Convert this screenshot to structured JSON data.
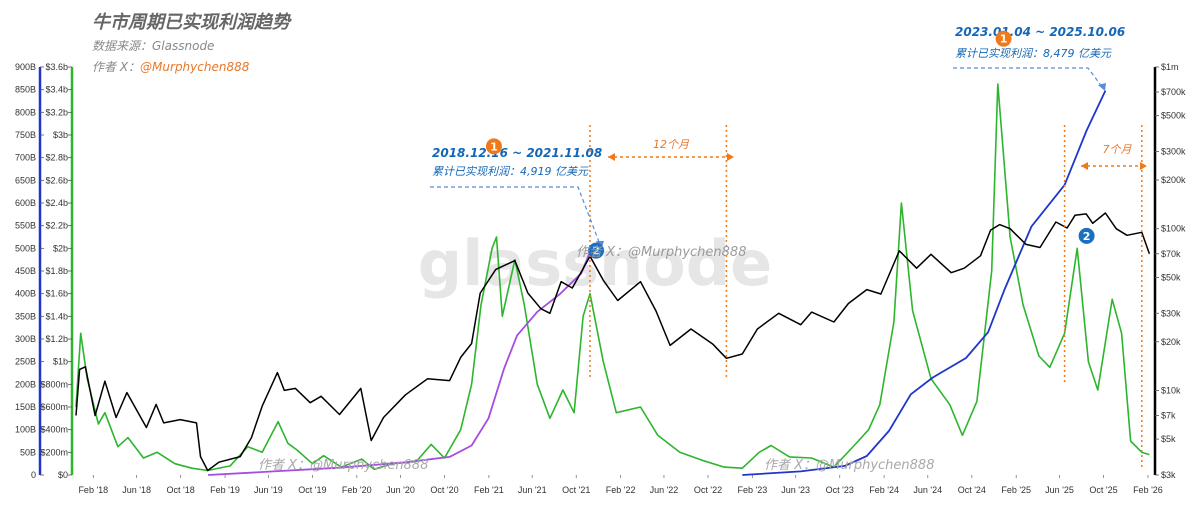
{
  "header": {
    "title": "牛市周期已实现利润趋势",
    "source": "数据来源：Glassnode",
    "author_prefix": "作者 X：",
    "author_handle": "@Murphychen888"
  },
  "watermark": {
    "brand": "glassnode",
    "handle_1": "作者 X：@Murphychen888",
    "handle_2": "作者 X：@Murphychen888",
    "handle_3": "作者 X：@Murphychen888"
  },
  "annotations": {
    "cycle1_range": "2018.12.16 ~ 2021.11.08",
    "cycle1_profit": "累计已实现利润：4,919 亿美元",
    "cycle2_range": "2023.01.04 ~ 2025.10.06",
    "cycle2_profit": "累计已实现利润：8,479 亿美元",
    "span1": "12个月",
    "span2": "7个月",
    "marker_a": "1",
    "marker_b": "2",
    "marker_c": "1",
    "marker_d": "2"
  },
  "colors": {
    "price": "#000000",
    "profit_ma": "#2db52d",
    "cum_cycle1": "#a64ce0",
    "cum_cycle2": "#1f36c9",
    "orange": "#f07a1a",
    "blue_marker": "#1a6fc0",
    "annotation_blue": "#1467b8"
  },
  "chart_data": {
    "type": "line",
    "title": "牛市周期已实现利润趋势",
    "x_ticks": [
      "Feb '18",
      "Jun '18",
      "Oct '18",
      "Feb '19",
      "Jun '19",
      "Oct '19",
      "Feb '20",
      "Jun '20",
      "Oct '20",
      "Feb '21",
      "Jun '21",
      "Oct '21",
      "Feb '22",
      "Jun '22",
      "Oct '22",
      "Feb '23",
      "Jun '23",
      "Oct '23",
      "Feb '24",
      "Jun '24",
      "Oct '24",
      "Feb '25",
      "Jun '25",
      "Oct '25",
      "Feb '26"
    ],
    "x_range": [
      "2017-12-15",
      "2026-02-15"
    ],
    "axis_left_outer": {
      "ticks": [
        "0",
        "50B",
        "100B",
        "150B",
        "200B",
        "250B",
        "300B",
        "350B",
        "400B",
        "450B",
        "500B",
        "550B",
        "600B",
        "650B",
        "700B",
        "750B",
        "800B",
        "850B",
        "900B"
      ],
      "range": [
        0,
        900
      ]
    },
    "axis_left_inner": {
      "ticks": [
        "$0",
        "$200m",
        "$400m",
        "$600m",
        "$800m",
        "$1b",
        "$1.2b",
        "$1.4b",
        "$1.6b",
        "$1.8b",
        "$2b",
        "$2.2b",
        "$2.4b",
        "$2.6b",
        "$2.8b",
        "$3b",
        "$3.2b",
        "$3.4b",
        "$3.6b"
      ],
      "range": [
        0,
        3.6
      ]
    },
    "axis_right": {
      "ticks": [
        "$3k",
        "$5k",
        "$7k",
        "$10k",
        "$20k",
        "$30k",
        "$50k",
        "$70k",
        "$100k",
        "$200k",
        "$300k",
        "$500k",
        "$700k",
        "$1m"
      ],
      "tick_values": [
        3000,
        5000,
        7000,
        10000,
        20000,
        30000,
        50000,
        70000,
        100000,
        200000,
        300000,
        500000,
        700000,
        1000000
      ],
      "scale": "log",
      "range": [
        3000,
        1000000
      ]
    },
    "series": [
      {
        "key": "price",
        "axis": "right",
        "points": [
          [
            "2017-12-15",
            7000
          ],
          [
            "2017-12-25",
            13500
          ],
          [
            "2018-01-10",
            14000
          ],
          [
            "2018-02-06",
            7000
          ],
          [
            "2018-03-05",
            11400
          ],
          [
            "2018-04-05",
            6800
          ],
          [
            "2018-05-05",
            9700
          ],
          [
            "2018-06-28",
            5900
          ],
          [
            "2018-07-25",
            8200
          ],
          [
            "2018-08-15",
            6300
          ],
          [
            "2018-09-30",
            6600
          ],
          [
            "2018-11-14",
            6300
          ],
          [
            "2018-11-25",
            3900
          ],
          [
            "2018-12-15",
            3200
          ],
          [
            "2019-01-15",
            3600
          ],
          [
            "2019-03-15",
            3900
          ],
          [
            "2019-04-15",
            5100
          ],
          [
            "2019-05-15",
            8000
          ],
          [
            "2019-06-26",
            12900
          ],
          [
            "2019-07-15",
            10000
          ],
          [
            "2019-08-15",
            10300
          ],
          [
            "2019-09-25",
            8400
          ],
          [
            "2019-10-25",
            9200
          ],
          [
            "2019-12-15",
            7100
          ],
          [
            "2020-02-12",
            10300
          ],
          [
            "2020-03-12",
            4900
          ],
          [
            "2020-04-15",
            6800
          ],
          [
            "2020-06-15",
            9400
          ],
          [
            "2020-08-15",
            11800
          ],
          [
            "2020-10-15",
            11500
          ],
          [
            "2020-11-15",
            16000
          ],
          [
            "2020-12-15",
            19500
          ],
          [
            "2021-01-08",
            40000
          ],
          [
            "2021-02-20",
            56000
          ],
          [
            "2021-04-14",
            63500
          ],
          [
            "2021-05-20",
            40000
          ],
          [
            "2021-06-25",
            32000
          ],
          [
            "2021-07-20",
            30000
          ],
          [
            "2021-08-20",
            47000
          ],
          [
            "2021-09-20",
            43000
          ],
          [
            "2021-11-08",
            67500
          ],
          [
            "2021-12-15",
            48000
          ],
          [
            "2022-01-24",
            36000
          ],
          [
            "2022-03-28",
            47000
          ],
          [
            "2022-05-10",
            31000
          ],
          [
            "2022-06-18",
            19000
          ],
          [
            "2022-08-15",
            24000
          ],
          [
            "2022-10-15",
            19300
          ],
          [
            "2022-11-21",
            15800
          ],
          [
            "2023-01-04",
            16800
          ],
          [
            "2023-02-15",
            24000
          ],
          [
            "2023-04-15",
            30000
          ],
          [
            "2023-06-15",
            25500
          ],
          [
            "2023-07-15",
            30500
          ],
          [
            "2023-09-15",
            26500
          ],
          [
            "2023-10-25",
            34500
          ],
          [
            "2023-12-15",
            42000
          ],
          [
            "2024-01-23",
            39500
          ],
          [
            "2024-03-14",
            73000
          ],
          [
            "2024-05-01",
            57000
          ],
          [
            "2024-06-10",
            69500
          ],
          [
            "2024-08-05",
            53500
          ],
          [
            "2024-09-10",
            57000
          ],
          [
            "2024-10-25",
            68000
          ],
          [
            "2024-11-22",
            98000
          ],
          [
            "2024-12-17",
            106000
          ],
          [
            "2025-01-15",
            100000
          ],
          [
            "2025-02-28",
            80000
          ],
          [
            "2025-04-08",
            76500
          ],
          [
            "2025-05-22",
            110000
          ],
          [
            "2025-06-22",
            101000
          ],
          [
            "2025-07-14",
            121000
          ],
          [
            "2025-08-14",
            123500
          ],
          [
            "2025-09-01",
            108000
          ],
          [
            "2025-10-06",
            125000
          ],
          [
            "2025-11-05",
            100000
          ],
          [
            "2025-12-05",
            91000
          ],
          [
            "2026-01-15",
            95000
          ],
          [
            "2026-02-05",
            70000
          ]
        ]
      },
      {
        "key": "realized_profit_ma",
        "axis": "left_inner",
        "points": [
          [
            "2017-12-15",
            0.6
          ],
          [
            "2017-12-28",
            1.25
          ],
          [
            "2018-01-15",
            0.85
          ],
          [
            "2018-02-15",
            0.45
          ],
          [
            "2018-03-05",
            0.55
          ],
          [
            "2018-04-10",
            0.25
          ],
          [
            "2018-05-08",
            0.33
          ],
          [
            "2018-06-20",
            0.15
          ],
          [
            "2018-07-28",
            0.2
          ],
          [
            "2018-09-15",
            0.1
          ],
          [
            "2018-11-01",
            0.06
          ],
          [
            "2018-12-15",
            0.04
          ],
          [
            "2019-02-15",
            0.08
          ],
          [
            "2019-04-05",
            0.25
          ],
          [
            "2019-05-15",
            0.2
          ],
          [
            "2019-06-28",
            0.47
          ],
          [
            "2019-07-25",
            0.28
          ],
          [
            "2019-08-20",
            0.22
          ],
          [
            "2019-10-01",
            0.1
          ],
          [
            "2019-11-01",
            0.17
          ],
          [
            "2019-12-20",
            0.07
          ],
          [
            "2020-02-15",
            0.14
          ],
          [
            "2020-03-20",
            0.05
          ],
          [
            "2020-05-10",
            0.1
          ],
          [
            "2020-07-15",
            0.12
          ],
          [
            "2020-08-25",
            0.27
          ],
          [
            "2020-10-01",
            0.15
          ],
          [
            "2020-11-15",
            0.4
          ],
          [
            "2020-12-15",
            0.8
          ],
          [
            "2021-01-10",
            1.5
          ],
          [
            "2021-02-10",
            2.0
          ],
          [
            "2021-02-22",
            2.1
          ],
          [
            "2021-03-10",
            1.4
          ],
          [
            "2021-04-14",
            1.9
          ],
          [
            "2021-05-10",
            1.5
          ],
          [
            "2021-06-15",
            0.8
          ],
          [
            "2021-07-20",
            0.5
          ],
          [
            "2021-08-25",
            0.75
          ],
          [
            "2021-09-25",
            0.55
          ],
          [
            "2021-10-20",
            1.4
          ],
          [
            "2021-11-08",
            1.6
          ],
          [
            "2021-12-15",
            1.0
          ],
          [
            "2022-01-20",
            0.55
          ],
          [
            "2022-03-28",
            0.6
          ],
          [
            "2022-05-15",
            0.35
          ],
          [
            "2022-07-15",
            0.2
          ],
          [
            "2022-09-15",
            0.13
          ],
          [
            "2022-11-15",
            0.07
          ],
          [
            "2023-01-04",
            0.06
          ],
          [
            "2023-02-20",
            0.2
          ],
          [
            "2023-03-25",
            0.26
          ],
          [
            "2023-05-15",
            0.16
          ],
          [
            "2023-07-15",
            0.15
          ],
          [
            "2023-09-15",
            0.07
          ],
          [
            "2023-11-10",
            0.26
          ],
          [
            "2023-12-20",
            0.4
          ],
          [
            "2024-01-20",
            0.62
          ],
          [
            "2024-02-28",
            1.35
          ],
          [
            "2024-03-20",
            2.4
          ],
          [
            "2024-04-20",
            1.45
          ],
          [
            "2024-06-10",
            0.85
          ],
          [
            "2024-08-01",
            0.62
          ],
          [
            "2024-09-05",
            0.35
          ],
          [
            "2024-10-15",
            0.65
          ],
          [
            "2024-11-25",
            1.8
          ],
          [
            "2024-12-12",
            3.45
          ],
          [
            "2025-01-15",
            2.1
          ],
          [
            "2025-02-20",
            1.5
          ],
          [
            "2025-04-05",
            1.05
          ],
          [
            "2025-05-05",
            0.95
          ],
          [
            "2025-06-15",
            1.25
          ],
          [
            "2025-07-20",
            2.0
          ],
          [
            "2025-08-20",
            1.0
          ],
          [
            "2025-09-15",
            0.75
          ],
          [
            "2025-10-25",
            1.55
          ],
          [
            "2025-11-20",
            1.25
          ],
          [
            "2025-12-15",
            0.3
          ],
          [
            "2026-01-15",
            0.2
          ],
          [
            "2026-02-05",
            0.18
          ]
        ]
      },
      {
        "key": "cumulative_realized_profit_2018_2021",
        "axis": "left_outer",
        "points": [
          [
            "2018-12-16",
            0
          ],
          [
            "2019-06-15",
            8
          ],
          [
            "2019-12-15",
            16
          ],
          [
            "2020-06-15",
            28
          ],
          [
            "2020-10-15",
            40
          ],
          [
            "2020-12-15",
            65
          ],
          [
            "2021-01-31",
            125
          ],
          [
            "2021-03-15",
            235
          ],
          [
            "2021-04-20",
            308
          ],
          [
            "2021-06-15",
            360
          ],
          [
            "2021-08-15",
            398
          ],
          [
            "2021-10-15",
            445
          ],
          [
            "2021-11-08",
            491.9
          ]
        ]
      },
      {
        "key": "cumulative_realized_profit_2023_2025",
        "axis": "left_outer",
        "points": [
          [
            "2023-01-04",
            0
          ],
          [
            "2023-06-15",
            8
          ],
          [
            "2023-10-15",
            20
          ],
          [
            "2023-12-15",
            42
          ],
          [
            "2024-02-15",
            98
          ],
          [
            "2024-04-15",
            178
          ],
          [
            "2024-06-15",
            215
          ],
          [
            "2024-09-15",
            258
          ],
          [
            "2024-11-15",
            315
          ],
          [
            "2024-12-31",
            410
          ],
          [
            "2025-03-15",
            548
          ],
          [
            "2025-06-15",
            640
          ],
          [
            "2025-08-15",
            760
          ],
          [
            "2025-10-06",
            847.9
          ]
        ]
      }
    ],
    "markers": [
      {
        "label": "1",
        "color": "orange",
        "date": "2021-02-15",
        "y": 2.9
      },
      {
        "label": "2",
        "color": "blue",
        "date": "2021-11-25",
        "y": 1.98
      },
      {
        "label": "1",
        "color": "orange",
        "date": "2024-12-28",
        "y": 3.85
      },
      {
        "label": "2",
        "color": "blue",
        "date": "2025-08-15",
        "y": 2.11
      }
    ],
    "vlines": [
      "2021-11-08",
      "2022-11-21",
      "2025-06-15",
      "2026-01-15"
    ]
  }
}
